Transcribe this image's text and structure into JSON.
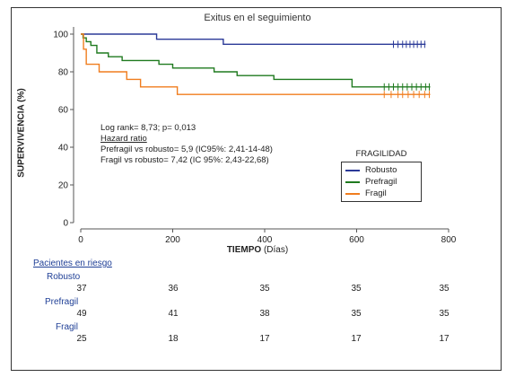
{
  "chart_data": {
    "type": "line",
    "title": "Exitus en el seguimiento",
    "xlabel_bold": "TIEMPO",
    "xlabel_unit": "(Días)",
    "ylabel": "SUPERVIVENCIA (%)",
    "xlim": [
      0,
      800
    ],
    "ylim": [
      0,
      100
    ],
    "xticks": [
      0,
      200,
      400,
      600,
      800
    ],
    "yticks": [
      0,
      20,
      40,
      60,
      80,
      100
    ],
    "grid": false,
    "legend_title": "FRAGILIDAD",
    "legend_position": "right",
    "series": [
      {
        "name": "Robusto",
        "color": "#2b3a98",
        "x": [
          0,
          165,
          310,
          690,
          750
        ],
        "y": [
          100,
          97.3,
          94.6,
          94.6,
          94.6
        ],
        "censor_x": [
          680,
          690,
          700,
          708,
          716,
          724,
          732,
          740,
          748
        ]
      },
      {
        "name": "Prefragil",
        "color": "#1f7a1f",
        "x": [
          0,
          5,
          12,
          22,
          35,
          60,
          90,
          170,
          200,
          290,
          340,
          420,
          590,
          760
        ],
        "y": [
          100,
          98,
          96,
          94,
          90,
          88,
          86,
          84,
          82,
          80,
          78,
          76,
          72,
          72
        ],
        "censor_x": [
          660,
          670,
          680,
          690,
          700,
          710,
          720,
          730,
          740,
          750,
          758
        ]
      },
      {
        "name": "Fragil",
        "color": "#f07d1e",
        "x": [
          0,
          6,
          12,
          40,
          100,
          130,
          210,
          760
        ],
        "y": [
          100,
          92,
          84,
          80,
          76,
          72,
          68,
          68
        ],
        "censor_x": [
          660,
          675,
          690,
          700,
          712,
          724,
          736,
          748,
          758
        ]
      }
    ],
    "annotations": [
      "Log rank= 8,73; p= 0,013",
      "Hazard ratio",
      "Prefragil vs robusto= 5,9 (IC95%: 2,41-14-48)",
      "Fragil vs robusto= 7,42 (IC 95%: 2,43-22,68)"
    ]
  },
  "risk_table": {
    "title": "Pacientes en riesgo",
    "time_points": [
      0,
      200,
      400,
      600,
      800
    ],
    "groups": [
      {
        "name": "Robusto",
        "values": [
          37,
          36,
          35,
          35,
          35
        ]
      },
      {
        "name": "Prefragil",
        "values": [
          49,
          41,
          38,
          35,
          35
        ]
      },
      {
        "name": "Fragil",
        "values": [
          25,
          18,
          17,
          17,
          17
        ]
      }
    ]
  }
}
